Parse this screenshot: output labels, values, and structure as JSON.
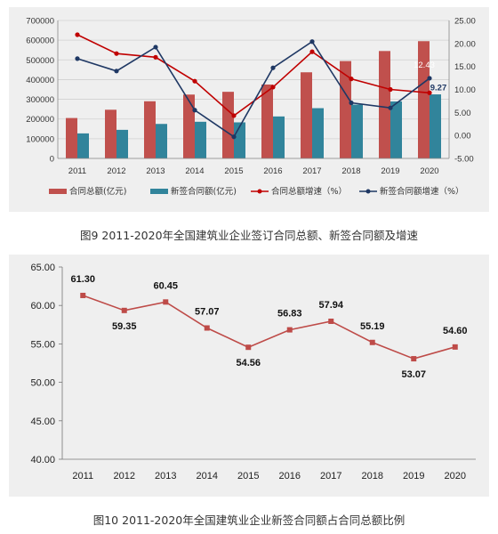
{
  "captions": {
    "fig9": "图9 2011-2020年全国建筑业企业签订合同总额、新签合同额及增速",
    "fig10": "图10 2011-2020年全国建筑业企业新签合同额占合同总额比例"
  },
  "colors": {
    "bar_total": "#c0504d",
    "bar_new": "#31849b",
    "line_total": "#c00000",
    "line_new": "#1f3864",
    "line_ratio": "#be4b48"
  },
  "chart_data": [
    {
      "type": "bar",
      "categories": [
        "2011",
        "2012",
        "2013",
        "2014",
        "2015",
        "2016",
        "2017",
        "2018",
        "2019",
        "2020"
      ],
      "series": [
        {
          "name": "合同总额(亿元)",
          "axis": "left",
          "type": "bar",
          "values": [
            205000,
            247000,
            290000,
            324000,
            338000,
            375000,
            437000,
            494000,
            545000,
            595000
          ]
        },
        {
          "name": "新签合同额(亿元)",
          "axis": "left",
          "type": "bar",
          "values": [
            127000,
            145000,
            175000,
            186000,
            183000,
            213000,
            255000,
            273000,
            289000,
            325000
          ]
        },
        {
          "name": "合同总额增速（%）",
          "axis": "right",
          "type": "line",
          "values": [
            21.9,
            17.8,
            17.0,
            11.8,
            4.3,
            10.5,
            18.2,
            12.3,
            10.0,
            9.27
          ]
        },
        {
          "name": "新签合同额增速（%）",
          "axis": "right",
          "type": "line",
          "values": [
            16.7,
            14.0,
            19.2,
            5.5,
            -0.3,
            14.7,
            20.4,
            7.1,
            6.0,
            12.43
          ]
        }
      ],
      "left_ticks": [
        "0",
        "100000",
        "200000",
        "300000",
        "400000",
        "500000",
        "600000",
        "700000"
      ],
      "right_ticks": [
        "-5.00",
        "0.00",
        "5.00",
        "10.00",
        "15.00",
        "20.00",
        "25.00"
      ],
      "ylim_left": [
        0,
        700000
      ],
      "ylim_right": [
        -5,
        25
      ],
      "data_labels": [
        "12.43",
        "9.27"
      ],
      "legend_position": "bottom",
      "grid": true
    },
    {
      "type": "line",
      "categories": [
        "2011",
        "2012",
        "2013",
        "2014",
        "2015",
        "2016",
        "2017",
        "2018",
        "2019",
        "2020"
      ],
      "values": [
        61.3,
        59.35,
        60.45,
        57.07,
        54.56,
        56.83,
        57.94,
        55.19,
        53.07,
        54.6
      ],
      "labels": [
        "61.30",
        "59.35",
        "60.45",
        "57.07",
        "54.56",
        "56.83",
        "57.94",
        "55.19",
        "53.07",
        "54.60"
      ],
      "y_ticks": [
        "40.00",
        "45.00",
        "50.00",
        "55.00",
        "60.00",
        "65.00"
      ],
      "ylim": [
        40,
        65
      ],
      "grid": false
    }
  ]
}
